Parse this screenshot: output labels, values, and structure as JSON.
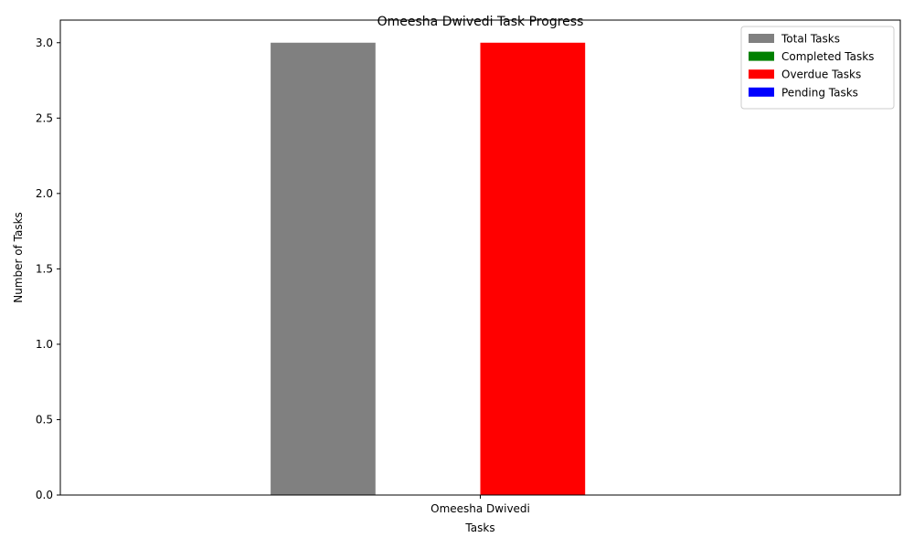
{
  "chart_data": {
    "type": "bar",
    "title": "Omeesha Dwivedi Task Progress",
    "xlabel": "Tasks",
    "ylabel": "Number of Tasks",
    "categories": [
      "Omeesha Dwivedi"
    ],
    "series": [
      {
        "name": "Total Tasks",
        "values": [
          3
        ],
        "color": "#808080"
      },
      {
        "name": "Completed Tasks",
        "values": [
          0
        ],
        "color": "#008000"
      },
      {
        "name": "Overdue Tasks",
        "values": [
          3
        ],
        "color": "#ff0000"
      },
      {
        "name": "Pending Tasks",
        "values": [
          0
        ],
        "color": "#0000ff"
      }
    ],
    "ylim": [
      0,
      3.15
    ],
    "yticks": [
      0.0,
      0.5,
      1.0,
      1.5,
      2.0,
      2.5,
      3.0
    ],
    "ytick_labels": [
      "0.0",
      "0.5",
      "1.0",
      "1.5",
      "2.0",
      "2.5",
      "3.0"
    ],
    "grid": false,
    "legend_position": "top-right"
  }
}
